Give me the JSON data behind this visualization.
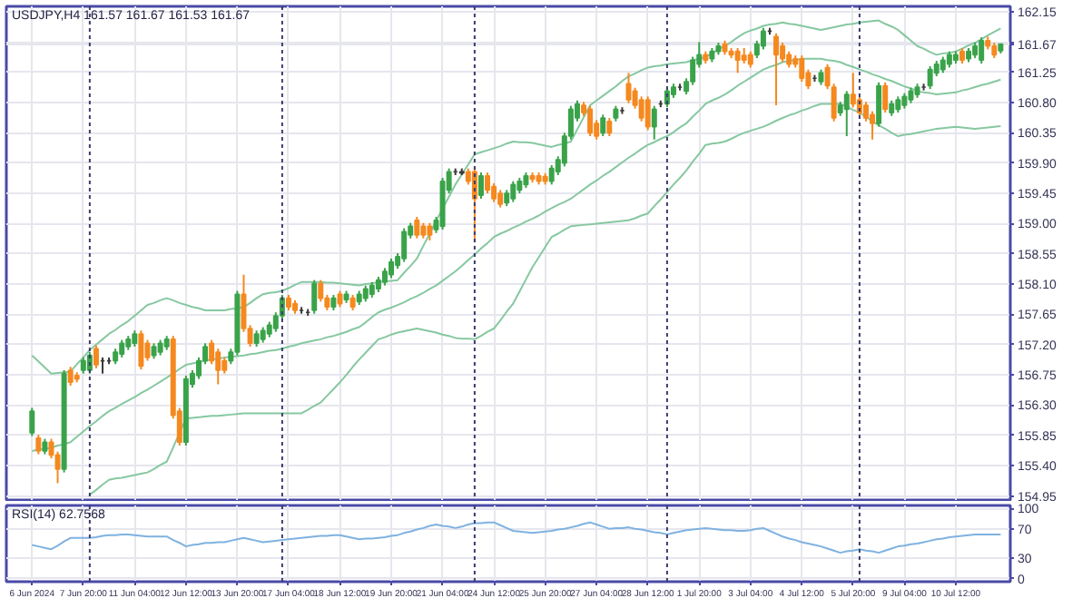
{
  "chart_data": [
    {
      "type": "candlestick",
      "title": "USDJPY,H4 161.57 161.67 161.53 161.67",
      "tick_labels": "y",
      "grid": true,
      "categories": [
        null,
        null,
        null,
        null,
        null,
        null,
        null,
        null,
        null,
        null,
        null,
        null,
        null,
        null,
        null,
        null,
        null,
        null,
        null,
        null,
        null,
        null,
        null,
        null,
        null,
        null,
        null,
        null,
        null,
        null,
        null,
        null,
        null,
        null,
        null,
        null,
        null,
        null,
        null,
        null,
        null,
        null,
        null,
        null,
        null,
        null,
        null,
        null,
        null,
        null,
        null,
        null,
        null,
        null,
        null,
        null,
        null,
        null,
        null,
        null,
        null,
        null,
        null,
        null,
        null,
        null,
        null,
        null,
        null,
        null,
        null,
        null,
        null,
        null,
        null,
        null,
        null,
        null,
        null,
        null,
        null,
        null,
        null,
        null,
        null,
        null,
        null,
        null,
        null,
        null,
        null,
        null,
        null,
        null,
        null,
        null,
        null,
        null,
        null,
        null,
        null,
        null,
        null,
        null,
        null,
        null,
        null,
        null,
        null,
        null,
        null,
        null,
        null,
        null,
        null,
        null,
        null,
        null,
        null,
        null,
        null,
        null,
        null,
        null,
        null,
        null,
        null,
        null,
        null,
        null,
        null,
        null,
        null,
        null,
        null,
        null,
        null,
        null,
        null,
        null,
        null,
        null,
        null,
        null,
        null,
        null,
        null,
        null,
        null,
        null,
        null,
        null
      ],
      "ohlc": [
        [
          155.89,
          156.26,
          155.84,
          156.21
        ],
        [
          155.81,
          155.86,
          155.57,
          155.62
        ],
        [
          155.62,
          155.8,
          155.57,
          155.75
        ],
        [
          155.75,
          155.8,
          155.51,
          155.56
        ],
        [
          155.56,
          155.61,
          155.14,
          155.35
        ],
        [
          155.35,
          156.82,
          155.3,
          156.77
        ],
        [
          156.82,
          156.87,
          156.59,
          156.64
        ],
        [
          156.74,
          156.79,
          156.64,
          156.69
        ],
        [
          156.82,
          157.01,
          156.77,
          156.96
        ],
        [
          156.82,
          157.09,
          156.77,
          157.04
        ],
        [
          157.14,
          157.19,
          156.85,
          156.9
        ],
        [
          156.96,
          157.01,
          156.77,
          156.96
        ],
        [
          156.96,
          157.01,
          156.91,
          156.96
        ],
        [
          156.96,
          157.14,
          156.91,
          157.09
        ],
        [
          157.06,
          157.27,
          157.01,
          157.22
        ],
        [
          157.17,
          157.33,
          157.12,
          157.28
        ],
        [
          157.22,
          157.41,
          157.17,
          157.36
        ],
        [
          157.36,
          157.41,
          156.83,
          156.88
        ],
        [
          157.22,
          157.27,
          156.96,
          157.01
        ],
        [
          157.04,
          157.22,
          156.99,
          157.17
        ],
        [
          157.09,
          157.27,
          157.04,
          157.22
        ],
        [
          157.17,
          157.33,
          157.12,
          157.28
        ],
        [
          157.28,
          157.33,
          156.1,
          156.15
        ],
        [
          156.21,
          156.26,
          155.7,
          155.75
        ],
        [
          155.75,
          156.74,
          155.7,
          156.69
        ],
        [
          156.61,
          156.82,
          156.56,
          156.77
        ],
        [
          156.74,
          157.01,
          156.69,
          156.96
        ],
        [
          156.96,
          157.22,
          156.91,
          157.17
        ],
        [
          157.22,
          157.27,
          156.91,
          156.96
        ],
        [
          157.09,
          157.14,
          156.61,
          156.82
        ],
        [
          156.96,
          157.01,
          156.77,
          156.82
        ],
        [
          156.96,
          157.14,
          156.91,
          157.09
        ],
        [
          157.09,
          158.0,
          157.04,
          157.95
        ],
        [
          157.95,
          158.24,
          157.39,
          157.44
        ],
        [
          157.44,
          157.49,
          157.17,
          157.22
        ],
        [
          157.22,
          157.41,
          157.17,
          157.36
        ],
        [
          157.28,
          157.46,
          157.23,
          157.41
        ],
        [
          157.36,
          157.54,
          157.31,
          157.49
        ],
        [
          157.44,
          157.68,
          157.39,
          157.63
        ],
        [
          157.63,
          157.94,
          157.58,
          157.89
        ],
        [
          157.89,
          157.94,
          157.71,
          157.76
        ],
        [
          157.81,
          157.86,
          157.66,
          157.71
        ],
        [
          157.71,
          157.76,
          157.66,
          157.71
        ],
        [
          157.68,
          157.73,
          157.63,
          157.68
        ],
        [
          157.71,
          158.16,
          157.66,
          158.11
        ],
        [
          158.11,
          158.16,
          157.84,
          157.89
        ],
        [
          157.89,
          157.94,
          157.71,
          157.76
        ],
        [
          157.76,
          157.94,
          157.71,
          157.89
        ],
        [
          157.95,
          158.0,
          157.76,
          157.81
        ],
        [
          157.87,
          158.0,
          157.82,
          157.95
        ],
        [
          157.89,
          157.94,
          157.71,
          157.76
        ],
        [
          157.84,
          158.0,
          157.79,
          157.95
        ],
        [
          157.89,
          158.08,
          157.84,
          158.03
        ],
        [
          157.95,
          158.13,
          157.9,
          158.08
        ],
        [
          158.03,
          158.21,
          157.98,
          158.16
        ],
        [
          158.13,
          158.34,
          158.08,
          158.29
        ],
        [
          158.24,
          158.48,
          158.19,
          158.43
        ],
        [
          158.38,
          158.56,
          158.33,
          158.51
        ],
        [
          158.48,
          158.93,
          158.43,
          158.88
        ],
        [
          158.83,
          159.01,
          158.78,
          158.96
        ],
        [
          159.05,
          159.1,
          158.78,
          158.83
        ],
        [
          158.96,
          159.01,
          158.78,
          158.83
        ],
        [
          158.96,
          159.01,
          158.75,
          158.83
        ],
        [
          158.91,
          159.1,
          158.86,
          159.05
        ],
        [
          158.96,
          159.68,
          158.91,
          159.63
        ],
        [
          159.5,
          159.82,
          159.45,
          159.77
        ],
        [
          159.77,
          159.82,
          159.72,
          159.77
        ],
        [
          159.77,
          159.82,
          159.72,
          159.75
        ],
        [
          159.77,
          159.82,
          159.58,
          159.63
        ],
        [
          159.77,
          159.82,
          158.72,
          159.37
        ],
        [
          159.42,
          159.76,
          159.37,
          159.71
        ],
        [
          159.71,
          159.76,
          159.45,
          159.5
        ],
        [
          159.55,
          159.6,
          159.32,
          159.37
        ],
        [
          159.45,
          159.5,
          159.24,
          159.29
        ],
        [
          159.31,
          159.5,
          159.26,
          159.45
        ],
        [
          159.37,
          159.63,
          159.32,
          159.58
        ],
        [
          159.5,
          159.68,
          159.45,
          159.63
        ],
        [
          159.58,
          159.76,
          159.53,
          159.71
        ],
        [
          159.71,
          159.76,
          159.61,
          159.66
        ],
        [
          159.71,
          159.76,
          159.58,
          159.63
        ],
        [
          159.7,
          159.75,
          159.58,
          159.63
        ],
        [
          159.63,
          159.87,
          159.58,
          159.82
        ],
        [
          159.77,
          160.0,
          159.72,
          159.95
        ],
        [
          159.9,
          160.35,
          159.85,
          160.3
        ],
        [
          160.3,
          160.75,
          160.25,
          160.7
        ],
        [
          160.57,
          160.83,
          160.52,
          160.78
        ],
        [
          160.76,
          160.81,
          160.6,
          160.65
        ],
        [
          160.7,
          160.75,
          160.3,
          160.35
        ],
        [
          160.49,
          160.54,
          160.25,
          160.3
        ],
        [
          160.35,
          160.62,
          160.3,
          160.57
        ],
        [
          160.52,
          160.57,
          160.3,
          160.35
        ],
        [
          160.57,
          160.75,
          160.52,
          160.7
        ],
        [
          160.68,
          160.73,
          160.63,
          160.68
        ],
        [
          161.08,
          161.24,
          160.79,
          160.84
        ],
        [
          160.97,
          161.02,
          160.71,
          160.76
        ],
        [
          160.84,
          160.89,
          160.52,
          160.57
        ],
        [
          160.84,
          160.89,
          160.39,
          160.44
        ],
        [
          160.44,
          160.75,
          160.25,
          160.7
        ],
        [
          160.78,
          160.83,
          160.73,
          160.78
        ],
        [
          160.78,
          161.02,
          160.73,
          160.97
        ],
        [
          160.92,
          161.08,
          160.87,
          161.03
        ],
        [
          161.03,
          161.08,
          160.98,
          161.03
        ],
        [
          160.97,
          161.16,
          160.92,
          161.11
        ],
        [
          161.11,
          161.48,
          161.06,
          161.43
        ],
        [
          161.37,
          161.7,
          161.32,
          161.51
        ],
        [
          161.51,
          161.56,
          161.38,
          161.43
        ],
        [
          161.45,
          161.61,
          161.4,
          161.56
        ],
        [
          161.56,
          161.69,
          161.51,
          161.64
        ],
        [
          161.67,
          161.72,
          161.51,
          161.56
        ],
        [
          161.56,
          161.61,
          161.46,
          161.51
        ],
        [
          161.56,
          161.61,
          161.24,
          161.43
        ],
        [
          161.5,
          161.61,
          161.38,
          161.43
        ],
        [
          161.51,
          161.56,
          161.32,
          161.37
        ],
        [
          161.51,
          161.72,
          161.46,
          161.67
        ],
        [
          161.64,
          161.91,
          161.59,
          161.86
        ],
        [
          161.86,
          161.91,
          161.81,
          161.86
        ],
        [
          161.78,
          161.83,
          160.76,
          161.51
        ],
        [
          161.64,
          161.69,
          161.4,
          161.45
        ],
        [
          161.51,
          161.56,
          161.32,
          161.37
        ],
        [
          161.45,
          161.5,
          161.32,
          161.37
        ],
        [
          161.45,
          161.5,
          161.11,
          161.16
        ],
        [
          161.24,
          161.29,
          161.0,
          161.05
        ],
        [
          161.16,
          161.21,
          161.11,
          161.16
        ],
        [
          161.11,
          161.29,
          161.06,
          161.24
        ],
        [
          161.32,
          161.37,
          161.0,
          161.05
        ],
        [
          161.03,
          161.08,
          160.52,
          160.57
        ],
        [
          160.65,
          160.81,
          160.6,
          160.76
        ],
        [
          160.7,
          160.97,
          160.3,
          160.92
        ],
        [
          160.92,
          161.24,
          160.73,
          160.78
        ],
        [
          160.84,
          160.89,
          160.6,
          160.65
        ],
        [
          160.76,
          160.81,
          160.52,
          160.57
        ],
        [
          160.62,
          160.67,
          160.25,
          160.49
        ],
        [
          160.49,
          161.1,
          160.44,
          161.05
        ],
        [
          161.05,
          161.1,
          160.65,
          160.7
        ],
        [
          160.65,
          160.83,
          160.6,
          160.78
        ],
        [
          160.7,
          160.89,
          160.65,
          160.84
        ],
        [
          160.76,
          160.94,
          160.71,
          160.89
        ],
        [
          160.84,
          161.02,
          160.79,
          160.97
        ],
        [
          160.92,
          161.08,
          160.87,
          161.03
        ],
        [
          161.03,
          161.08,
          160.98,
          161.03
        ],
        [
          161.05,
          161.34,
          161.0,
          161.29
        ],
        [
          161.24,
          161.42,
          161.19,
          161.37
        ],
        [
          161.29,
          161.48,
          161.24,
          161.43
        ],
        [
          161.37,
          161.56,
          161.32,
          161.51
        ],
        [
          161.43,
          161.56,
          161.38,
          161.51
        ],
        [
          161.56,
          161.61,
          161.38,
          161.43
        ],
        [
          161.45,
          161.61,
          161.4,
          161.56
        ],
        [
          161.51,
          161.69,
          161.46,
          161.64
        ],
        [
          161.43,
          161.77,
          161.38,
          161.72
        ],
        [
          161.72,
          161.78,
          161.59,
          161.64
        ],
        [
          161.64,
          161.69,
          161.46,
          161.51
        ],
        [
          161.57,
          161.67,
          161.53,
          161.67
        ]
      ],
      "colors": [
        "#3aa34a",
        "#f5891f",
        "#3aa34a",
        "#f5891f",
        "#f5891f",
        "#3aa34a",
        "#f5891f",
        "#f5891f",
        "#3aa34a",
        "#3aa34a",
        "#f5891f",
        "#3b3b3b",
        "#3b3b3b",
        "#3aa34a",
        "#3aa34a",
        "#3aa34a",
        "#3aa34a",
        "#f5891f",
        "#f5891f",
        "#3aa34a",
        "#3aa34a",
        "#3aa34a",
        "#f5891f",
        "#f5891f",
        "#3aa34a",
        "#3aa34a",
        "#3aa34a",
        "#3aa34a",
        "#f5891f",
        "#f5891f",
        "#f5891f",
        "#3aa34a",
        "#3aa34a",
        "#f5891f",
        "#f5891f",
        "#3aa34a",
        "#3aa34a",
        "#3aa34a",
        "#3aa34a",
        "#3aa34a",
        "#f5891f",
        "#f5891f",
        "#3b3b3b",
        "#3b3b3b",
        "#3aa34a",
        "#f5891f",
        "#f5891f",
        "#3aa34a",
        "#f5891f",
        "#3aa34a",
        "#f5891f",
        "#3aa34a",
        "#3aa34a",
        "#3aa34a",
        "#3aa34a",
        "#3aa34a",
        "#3aa34a",
        "#3aa34a",
        "#3aa34a",
        "#3aa34a",
        "#f5891f",
        "#f5891f",
        "#f5891f",
        "#3aa34a",
        "#3aa34a",
        "#3aa34a",
        "#3b3b3b",
        "#3b3b3b",
        "#f5891f",
        "#f5891f",
        "#3aa34a",
        "#f5891f",
        "#f5891f",
        "#f5891f",
        "#3aa34a",
        "#3aa34a",
        "#3aa34a",
        "#3aa34a",
        "#f5891f",
        "#f5891f",
        "#f5891f",
        "#3aa34a",
        "#3aa34a",
        "#3aa34a",
        "#3aa34a",
        "#3aa34a",
        "#f5891f",
        "#f5891f",
        "#f5891f",
        "#3aa34a",
        "#f5891f",
        "#3aa34a",
        "#3b3b3b",
        "#f5891f",
        "#f5891f",
        "#f5891f",
        "#f5891f",
        "#3aa34a",
        "#3b3b3b",
        "#3aa34a",
        "#3aa34a",
        "#3b3b3b",
        "#3aa34a",
        "#3aa34a",
        "#3aa34a",
        "#f5891f",
        "#3aa34a",
        "#3aa34a",
        "#f5891f",
        "#f5891f",
        "#f5891f",
        "#f5891f",
        "#f5891f",
        "#3aa34a",
        "#3aa34a",
        "#3b3b3b",
        "#f5891f",
        "#f5891f",
        "#f5891f",
        "#f5891f",
        "#f5891f",
        "#f5891f",
        "#3b3b3b",
        "#3aa34a",
        "#f5891f",
        "#f5891f",
        "#3aa34a",
        "#3aa34a",
        "#f5891f",
        "#f5891f",
        "#f5891f",
        "#f5891f",
        "#3aa34a",
        "#f5891f",
        "#3aa34a",
        "#3aa34a",
        "#3aa34a",
        "#3aa34a",
        "#3aa34a",
        "#3b3b3b",
        "#3aa34a",
        "#3aa34a",
        "#3aa34a",
        "#3aa34a",
        "#3aa34a",
        "#f5891f",
        "#3aa34a",
        "#3aa34a",
        "#3aa34a",
        "#f5891f",
        "#f5891f",
        "#3aa34a"
      ],
      "series": [
        {
          "type": "line",
          "color": "#86c8a0",
          "values": [
            157.04,
            156.95,
            156.86,
            156.77,
            156.78,
            156.79,
            156.8,
            156.91,
            157.01,
            157.12,
            157.2,
            157.28,
            157.36,
            157.42,
            157.49,
            157.55,
            157.63,
            157.71,
            157.79,
            157.82,
            157.86,
            157.89,
            157.86,
            157.82,
            157.79,
            157.76,
            157.74,
            157.71,
            157.71,
            157.71,
            157.71,
            157.73,
            157.74,
            157.76,
            157.82,
            157.89,
            157.95,
            157.97,
            157.98,
            158.0,
            158.04,
            158.09,
            158.13,
            158.13,
            158.13,
            158.13,
            158.12,
            158.12,
            158.11,
            158.1,
            158.09,
            158.08,
            158.1,
            158.11,
            158.13,
            158.14,
            158.15,
            158.16,
            158.27,
            158.37,
            158.48,
            158.67,
            158.85,
            159.04,
            159.22,
            159.4,
            159.58,
            159.73,
            159.88,
            160.03,
            160.06,
            160.09,
            160.12,
            160.15,
            160.19,
            160.22,
            160.21,
            160.21,
            160.2,
            160.18,
            160.16,
            160.14,
            160.17,
            160.19,
            160.22,
            160.4,
            160.58,
            160.76,
            160.83,
            160.9,
            160.97,
            161.04,
            161.12,
            161.19,
            161.23,
            161.28,
            161.32,
            161.34,
            161.35,
            161.37,
            161.38,
            161.39,
            161.4,
            161.43,
            161.45,
            161.48,
            161.53,
            161.59,
            161.64,
            161.7,
            161.77,
            161.83,
            161.87,
            161.9,
            161.94,
            161.96,
            161.97,
            161.99,
            161.97,
            161.96,
            161.94,
            161.92,
            161.9,
            161.88,
            161.9,
            161.92,
            161.94,
            161.96,
            161.97,
            161.99,
            162.0,
            162.01,
            162.02,
            161.97,
            161.93,
            161.88,
            161.8,
            161.72,
            161.64,
            161.6,
            161.55,
            161.51,
            161.53,
            161.54,
            161.56,
            161.6,
            161.65,
            161.69,
            161.74,
            161.8,
            161.85,
            161.9
          ]
        },
        {
          "type": "line",
          "color": "#86c8a0",
          "values": [
            155.62,
            155.64,
            155.65,
            155.67,
            155.7,
            155.72,
            155.75,
            155.83,
            155.91,
            155.99,
            156.06,
            156.14,
            156.21,
            156.26,
            156.32,
            156.37,
            156.42,
            156.48,
            156.53,
            156.59,
            156.65,
            156.71,
            156.77,
            156.84,
            156.9,
            156.92,
            156.94,
            156.96,
            156.98,
            156.99,
            157.01,
            157.02,
            157.03,
            157.04,
            157.06,
            157.07,
            157.09,
            157.11,
            157.12,
            157.14,
            157.17,
            157.19,
            157.22,
            157.24,
            157.26,
            157.28,
            157.31,
            157.33,
            157.36,
            157.39,
            157.43,
            157.46,
            157.53,
            157.61,
            157.68,
            157.72,
            157.75,
            157.79,
            157.83,
            157.88,
            157.92,
            157.97,
            158.03,
            158.08,
            158.15,
            158.22,
            158.29,
            158.37,
            158.46,
            158.54,
            158.63,
            158.71,
            158.8,
            158.85,
            158.89,
            158.94,
            158.98,
            159.03,
            159.07,
            159.12,
            159.18,
            159.23,
            159.28,
            159.32,
            159.37,
            159.44,
            159.51,
            159.58,
            159.64,
            159.71,
            159.77,
            159.84,
            159.91,
            159.98,
            160.04,
            160.11,
            160.17,
            160.21,
            160.26,
            160.3,
            160.36,
            160.43,
            160.49,
            160.59,
            160.68,
            160.78,
            160.83,
            160.87,
            160.92,
            160.98,
            161.05,
            161.11,
            161.17,
            161.23,
            161.29,
            161.33,
            161.36,
            161.4,
            161.42,
            161.43,
            161.45,
            161.45,
            161.45,
            161.45,
            161.43,
            161.42,
            161.4,
            161.36,
            161.33,
            161.29,
            161.26,
            161.22,
            161.19,
            161.15,
            161.12,
            161.08,
            161.04,
            161.01,
            160.97,
            160.95,
            160.94,
            160.92,
            160.93,
            160.94,
            160.95,
            160.98,
            161.0,
            161.03,
            161.06,
            161.08,
            161.11,
            161.14
          ]
        },
        {
          "type": "line",
          "color": "#86c8a0",
          "values": [
            null,
            null,
            null,
            null,
            null,
            null,
            null,
            null,
            null,
            154.97,
            155.04,
            155.12,
            155.19,
            155.21,
            155.22,
            155.24,
            155.26,
            155.28,
            155.3,
            155.35,
            155.41,
            155.46,
            155.67,
            155.89,
            156.1,
            156.11,
            156.12,
            156.13,
            156.14,
            156.14,
            156.15,
            156.16,
            156.17,
            156.18,
            156.18,
            156.18,
            156.18,
            156.18,
            156.18,
            156.18,
            156.18,
            156.18,
            156.18,
            156.23,
            156.29,
            156.34,
            156.44,
            156.54,
            156.64,
            156.75,
            156.87,
            156.98,
            157.08,
            157.18,
            157.28,
            157.31,
            157.35,
            157.38,
            157.4,
            157.42,
            157.44,
            157.42,
            157.4,
            157.38,
            157.35,
            157.33,
            157.3,
            157.29,
            157.29,
            157.28,
            157.33,
            157.39,
            157.44,
            157.56,
            157.69,
            157.81,
            157.99,
            158.17,
            158.35,
            158.5,
            158.65,
            158.8,
            158.85,
            158.91,
            158.96,
            158.97,
            158.98,
            158.99,
            159.0,
            159.01,
            159.02,
            159.03,
            159.04,
            159.05,
            159.08,
            159.12,
            159.15,
            159.26,
            159.36,
            159.47,
            159.58,
            159.68,
            159.79,
            159.92,
            160.04,
            160.17,
            160.19,
            160.2,
            160.22,
            160.26,
            160.31,
            160.35,
            160.38,
            160.41,
            160.44,
            160.48,
            160.53,
            160.57,
            160.61,
            160.64,
            160.68,
            160.71,
            160.75,
            160.78,
            160.78,
            160.78,
            160.78,
            160.74,
            160.69,
            160.65,
            160.59,
            160.52,
            160.46,
            160.41,
            160.35,
            160.3,
            160.32,
            160.33,
            160.35,
            160.37,
            160.39,
            160.41,
            160.42,
            160.43,
            160.44,
            160.43,
            160.42,
            160.41,
            160.42,
            160.43,
            160.44,
            160.45
          ]
        }
      ],
      "ylim": [
        154.89,
        162.23
      ],
      "yticks": [
        154.95,
        {
          "value": 155.4,
          "label": "155.40"
        },
        155.85,
        {
          "value": 156.3,
          "label": "156.30"
        },
        156.75,
        {
          "value": 157.2,
          "label": "157.20"
        },
        157.65,
        {
          "value": 158.1,
          "label": "158.10"
        },
        158.55,
        {
          "value": 159.0,
          "label": "159.00"
        },
        159.45,
        {
          "value": 159.9,
          "label": "159.90"
        },
        160.35,
        {
          "value": 160.8,
          "label": "160.80"
        },
        161.25,
        161.67,
        {
          "value": 161.7,
          "label": null
        },
        162.15
      ]
    },
    {
      "type": "line",
      "title": "RSI(14) 62.7568",
      "grid": true,
      "categories": [
        "6 Jun 2024",
        null,
        null,
        null,
        null,
        null,
        null,
        null,
        "7 Jun 20:00",
        null,
        null,
        null,
        null,
        null,
        null,
        null,
        "11 Jun 04:00",
        null,
        null,
        null,
        null,
        null,
        null,
        null,
        "12 Jun 12:00",
        null,
        null,
        null,
        null,
        null,
        null,
        null,
        "13 Jun 20:00",
        null,
        null,
        null,
        null,
        null,
        null,
        null,
        "17 Jun 04:00",
        null,
        null,
        null,
        null,
        null,
        null,
        null,
        "18 Jun 12:00",
        null,
        null,
        null,
        null,
        null,
        null,
        null,
        "19 Jun 20:00",
        null,
        null,
        null,
        null,
        null,
        null,
        null,
        "21 Jun 04:00",
        null,
        null,
        null,
        null,
        null,
        null,
        null,
        "24 Jun 12:00",
        null,
        null,
        null,
        null,
        null,
        null,
        null,
        "25 Jun 20:00",
        null,
        null,
        null,
        null,
        null,
        null,
        null,
        "27 Jun 04:00",
        null,
        null,
        null,
        null,
        null,
        null,
        null,
        "28 Jun 12:00",
        null,
        null,
        null,
        null,
        null,
        null,
        null,
        "1 Jul 20:00",
        null,
        null,
        null,
        null,
        null,
        null,
        null,
        "3 Jul 04:00",
        null,
        null,
        null,
        null,
        null,
        null,
        null,
        "4 Jul 12:00",
        null,
        null,
        null,
        null,
        null,
        null,
        null,
        "5 Jul 20:00",
        null,
        null,
        null,
        null,
        null,
        null,
        null,
        "9 Jul 04:00",
        null,
        null,
        null,
        null,
        null,
        null,
        null,
        "10 Jul 12:00",
        null,
        null,
        null,
        null,
        null,
        null,
        null
      ],
      "series": [
        {
          "color": "#7fb2e0",
          "values": [
            48,
            46,
            44,
            42,
            47,
            53,
            58,
            58,
            58,
            58,
            59,
            61,
            62,
            62,
            63,
            63,
            62,
            61,
            60,
            60,
            60,
            60,
            55,
            51,
            46,
            48,
            49,
            51,
            51,
            52,
            52,
            54,
            56,
            58,
            56,
            54,
            52,
            53,
            54,
            55,
            56,
            57,
            58,
            59,
            60,
            61,
            61,
            62,
            62,
            60,
            58,
            56,
            57,
            57,
            58,
            59,
            61,
            62,
            65,
            67,
            70,
            72,
            75,
            77,
            75,
            74,
            72,
            74,
            77,
            79,
            79,
            80,
            80,
            76,
            72,
            68,
            67,
            66,
            65,
            66,
            67,
            68,
            70,
            71,
            73,
            75,
            78,
            80,
            77,
            74,
            71,
            72,
            72,
            73,
            71,
            70,
            68,
            66,
            65,
            63,
            65,
            67,
            69,
            70,
            71,
            72,
            71,
            70,
            69,
            69,
            68,
            68,
            69,
            71,
            72,
            68,
            64,
            60,
            57,
            55,
            52,
            50,
            48,
            46,
            43,
            40,
            37,
            39,
            40,
            42,
            40,
            39,
            37,
            40,
            43,
            46,
            47,
            49,
            50,
            52,
            54,
            56,
            57,
            59,
            60,
            61,
            62,
            63,
            63,
            63,
            63,
            63
          ]
        }
      ],
      "ylim": [
        -4,
        104
      ],
      "yticks": [
        0,
        30,
        70,
        100
      ]
    }
  ]
}
